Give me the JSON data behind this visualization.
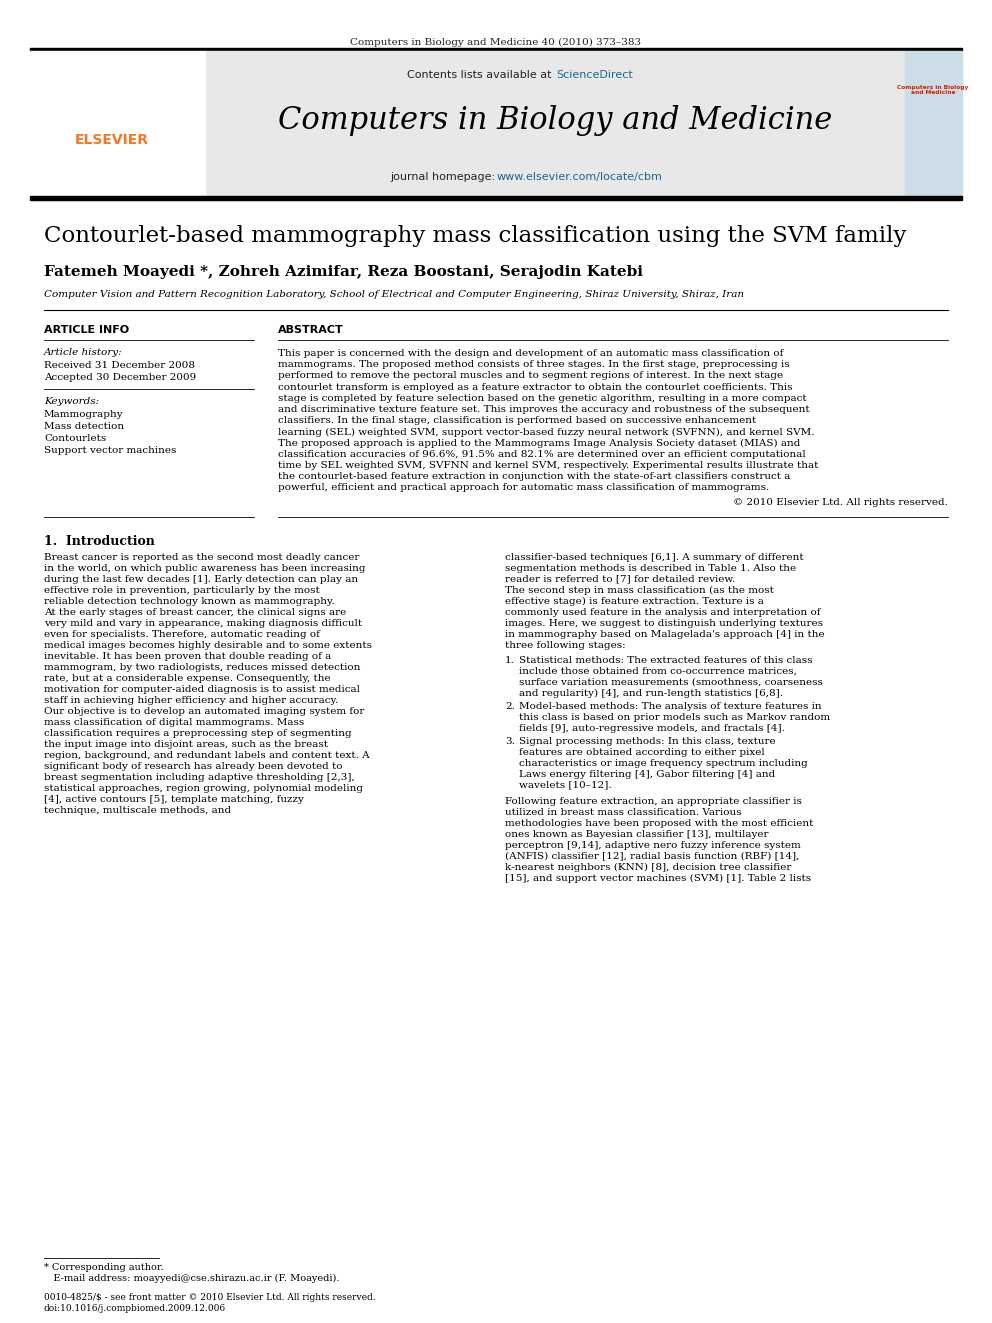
{
  "page_bg": "#ffffff",
  "top_journal_ref": "Computers in Biology and Medicine 40 (2010) 373–383",
  "header_bg": "#e8e8e8",
  "sciencedirect_color": "#1a6496",
  "journal_title": "Computers in Biology and Medicine",
  "homepage_color": "#1a6496",
  "paper_title": "Contourlet-based mammography mass classification using the SVM family",
  "authors": "Fatemeh Moayedi *, Zohreh Azimifar, Reza Boostani, Serajodin Katebi",
  "affiliation": "Computer Vision and Pattern Recognition Laboratory, School of Electrical and Computer Engineering, Shiraz University, Shiraz, Iran",
  "article_info_header": "ARTICLE INFO",
  "article_history_label": "Article history:",
  "received": "Received 31 December 2008",
  "accepted": "Accepted 30 December 2009",
  "keywords_label": "Keywords:",
  "keywords": [
    "Mammography",
    "Mass detection",
    "Contourlets",
    "Support vector machines"
  ],
  "abstract_header": "ABSTRACT",
  "abstract_p1": "This paper is concerned with the design and development of an automatic mass classification of mammograms. The proposed method consists of three stages. In the first stage, preprocessing is performed to remove the pectoral muscles and to segment regions of interest. In the next stage contourlet transform is employed as a feature extractor to obtain the contourlet coefficients. This stage is completed by feature selection based on the genetic algorithm, resulting in a more compact and discriminative texture feature set. This improves the accuracy and robustness of the subsequent classifiers. In the final stage, classification is performed based on successive enhancement learning (SEL) weighted SVM, support vector-based fuzzy neural network (SVFNN), and kernel SVM.",
  "abstract_p2": "    The proposed approach is applied to the Mammograms Image Analysis Society dataset (MIAS) and classification accuracies of 96.6%, 91.5% and 82.1% are determined over an efficient computational time by SEL weighted SVM, SVFNN and kernel SVM, respectively. Experimental results illustrate that the contourlet-based feature extraction in conjunction with the state-of-art classifiers construct a powerful, efficient and practical approach for automatic mass classification of mammograms.",
  "copyright": "© 2010 Elsevier Ltd. All rights reserved.",
  "section1_title": "1.  Introduction",
  "intro_col1": "    Breast cancer is reported as the second most deadly cancer in the world, on which public awareness has been increasing during the last few decades [1]. Early detection can play an effective role in prevention, particularly by the most reliable detection technology known as mammography.\n    At the early stages of breast cancer, the clinical signs are very mild and vary in appearance, making diagnosis difficult even for specialists. Therefore, automatic reading of medical images becomes highly desirable and to some extents inevitable. It has been proven that double reading of a mammogram, by two radiologists, reduces missed detection rate, but at a considerable expense. Consequently, the motivation for computer-aided diagnosis is to assist medical staff in achieving higher efficiency and higher accuracy.\n    Our objective is to develop an automated imaging system for mass classification of digital mammograms. Mass classification requires a preprocessing step of segmenting the input image into disjoint areas, such as the breast region, background, and redundant labels and content text. A significant body of research has already been devoted to breast segmentation including adaptive thresholding [2,3], statistical approaches, region growing, polynomial modeling [4], active contours [5], template matching, fuzzy technique, multiscale methods, and",
  "intro_col2": "classifier-based techniques [6,1]. A summary of different segmentation methods is described in Table 1. Also the reader is referred to [7] for detailed review.\n    The second step in mass classification (as the most effective stage) is feature extraction. Texture is a commonly used feature in the analysis and interpretation of images. Here, we suggest to distinguish underlying textures in mammography based on Malagelada's approach [4] in the three following stages:",
  "numbered_items": [
    "Statistical methods: The extracted features of this class include those obtained from co-occurrence matrices, surface variation measurements (smoothness, coarseness and regularity) [4], and run-length statistics [6,8].",
    "Model-based methods: The analysis of texture features in this class is based on prior models such as Markov random fields [9], auto-regressive models, and fractals [4].",
    "Signal processing methods: In this class, texture features are obtained according to either pixel characteristics or image frequency spectrum including Laws energy filtering [4], Gabor filtering [4] and wavelets [10–12]."
  ],
  "intro_col2_continued": "    Following feature extraction, an appropriate classifier is utilized in breast mass classification. Various methodologies have been proposed with the most efficient ones known as Bayesian classifier [13], multilayer perceptron [9,14], adaptive nero fuzzy inference system (ANFIS) classifier [12], radial basis function (RBF) [14], k-nearest neighbors (KNN) [8], decision tree classifier [15], and support vector machines (SVM) [1]. Table 2 lists",
  "footnote_line1": "* Corresponding author.",
  "footnote_line2": "   E-mail address: moayyedi@cse.shirazu.ac.ir (F. Moayedi).",
  "bottom_ref1": "0010-4825/$ - see front matter © 2010 Elsevier Ltd. All rights reserved.",
  "bottom_ref2": "doi:10.1016/j.compbiomed.2009.12.006",
  "elsevier_orange": "#f47920",
  "dark_gray": "#222222"
}
